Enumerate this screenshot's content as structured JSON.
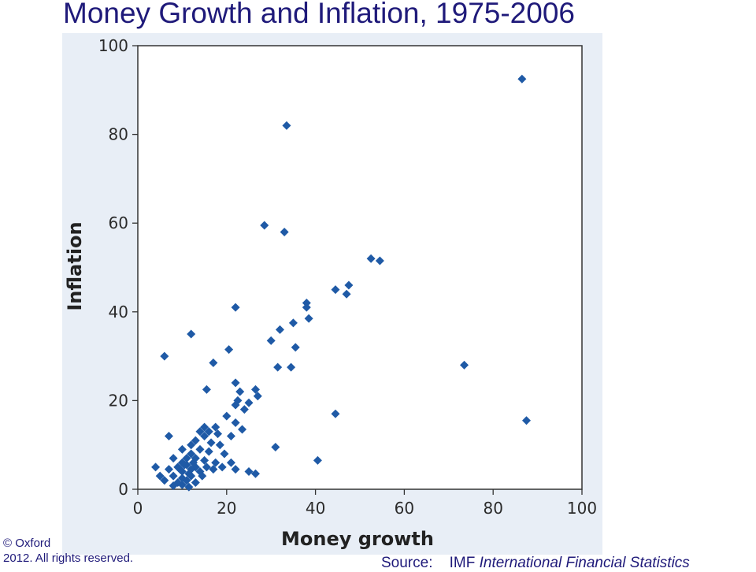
{
  "slide": {
    "title": "Money Growth and Inflation, 1975-2006",
    "copyright_symbol": "©",
    "copyright_line1": "Oxford",
    "copyright_line2": "2012. All rights reserved.",
    "source_prefix": "Source:",
    "source_org": "IMF",
    "source_title": "International Financial Statistics"
  },
  "colors": {
    "marker": "#1f5aa6",
    "panel_background": "#e8eef6",
    "title_text": "#1f1a7a"
  },
  "chart_data": {
    "type": "scatter",
    "title": "",
    "xlabel": "Money growth",
    "ylabel": "Inflation",
    "xlim": [
      0,
      100
    ],
    "ylim": [
      0,
      100
    ],
    "xticks": [
      0,
      20,
      40,
      60,
      80,
      100
    ],
    "yticks": [
      0,
      20,
      40,
      60,
      80,
      100
    ],
    "grid": false,
    "marker": "diamond",
    "points": [
      [
        86.5,
        92.5
      ],
      [
        33.5,
        82
      ],
      [
        28.5,
        59.5
      ],
      [
        33,
        58
      ],
      [
        52.5,
        52
      ],
      [
        54.5,
        51.5
      ],
      [
        47.5,
        46
      ],
      [
        44.5,
        45
      ],
      [
        47,
        44
      ],
      [
        38,
        42
      ],
      [
        38,
        41
      ],
      [
        22,
        41
      ],
      [
        38.5,
        38.5
      ],
      [
        35,
        37.5
      ],
      [
        32,
        36
      ],
      [
        12,
        35
      ],
      [
        30,
        33.5
      ],
      [
        35.5,
        32
      ],
      [
        20.5,
        31.5
      ],
      [
        6,
        30
      ],
      [
        17,
        28.5
      ],
      [
        73.5,
        28
      ],
      [
        31.5,
        27.5
      ],
      [
        34.5,
        27.5
      ],
      [
        22,
        24
      ],
      [
        26.5,
        22.5
      ],
      [
        15.5,
        22.5
      ],
      [
        23,
        22
      ],
      [
        27,
        21
      ],
      [
        22.5,
        20
      ],
      [
        25,
        19.5
      ],
      [
        22,
        19
      ],
      [
        24,
        18
      ],
      [
        44.5,
        17
      ],
      [
        20,
        16.5
      ],
      [
        87.5,
        15.5
      ],
      [
        22,
        15
      ],
      [
        15,
        14
      ],
      [
        17.5,
        14
      ],
      [
        23.5,
        13.5
      ],
      [
        14,
        13
      ],
      [
        16,
        13
      ],
      [
        18,
        12.5
      ],
      [
        7,
        12
      ],
      [
        21,
        12
      ],
      [
        15,
        12
      ],
      [
        13,
        11
      ],
      [
        16.5,
        10.5
      ],
      [
        18.5,
        10
      ],
      [
        31,
        9.5
      ],
      [
        12,
        10
      ],
      [
        10,
        9
      ],
      [
        14,
        9
      ],
      [
        16,
        8.5
      ],
      [
        12,
        8
      ],
      [
        19.5,
        8
      ],
      [
        8,
        7
      ],
      [
        11,
        7
      ],
      [
        13,
        7
      ],
      [
        15,
        6.5
      ],
      [
        10,
        6
      ],
      [
        17.5,
        6
      ],
      [
        21,
        6
      ],
      [
        40.5,
        6.5
      ],
      [
        9,
        5
      ],
      [
        11,
        5.5
      ],
      [
        13,
        5
      ],
      [
        15.5,
        5
      ],
      [
        4,
        5
      ],
      [
        7,
        4.5
      ],
      [
        10,
        4
      ],
      [
        12,
        4.5
      ],
      [
        14,
        4
      ],
      [
        17,
        4.5
      ],
      [
        19,
        5
      ],
      [
        22,
        4.5
      ],
      [
        25,
        4
      ],
      [
        26.5,
        3.5
      ],
      [
        5,
        3
      ],
      [
        8,
        3
      ],
      [
        10,
        2.5
      ],
      [
        12,
        3
      ],
      [
        14.5,
        3
      ],
      [
        6,
        2
      ],
      [
        9,
        1.5
      ],
      [
        11,
        2
      ],
      [
        13,
        1.5
      ],
      [
        8,
        0.8
      ],
      [
        10,
        1
      ],
      [
        11.5,
        0.5
      ],
      [
        12.5,
        6
      ],
      [
        10.5,
        5.5
      ],
      [
        9.5,
        4.5
      ],
      [
        11.5,
        3.5
      ]
    ]
  }
}
